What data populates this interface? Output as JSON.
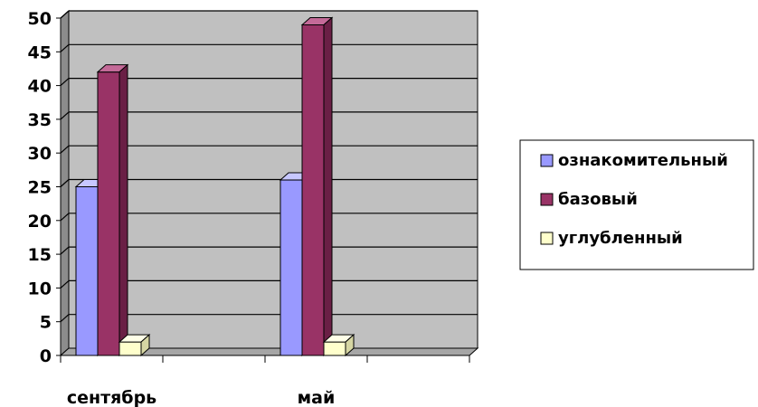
{
  "chart_data": {
    "type": "bar",
    "style": "3d-clustered-column",
    "categories": [
      "сентябрь",
      "май"
    ],
    "series": [
      {
        "name": "ознакомительный",
        "values": [
          25,
          26
        ],
        "color": "#9999FF",
        "top_color": "#C7C7FF",
        "side_color": "#6B6BC8"
      },
      {
        "name": "базовый",
        "values": [
          42,
          49
        ],
        "color": "#993366",
        "top_color": "#C46A98",
        "side_color": "#6A1F45"
      },
      {
        "name": "углубленный",
        "values": [
          2,
          2
        ],
        "color": "#FFFFCC",
        "top_color": "#FFFFE8",
        "side_color": "#D6D6A3"
      }
    ],
    "y_ticks": [
      0,
      5,
      10,
      15,
      20,
      25,
      30,
      35,
      40,
      45,
      50
    ],
    "ylim": [
      0,
      50
    ],
    "grid": true,
    "legend": "right",
    "colors": {
      "wall": "#C0C0C0",
      "floor": "#A6A6A6",
      "grid": "#000000"
    }
  }
}
